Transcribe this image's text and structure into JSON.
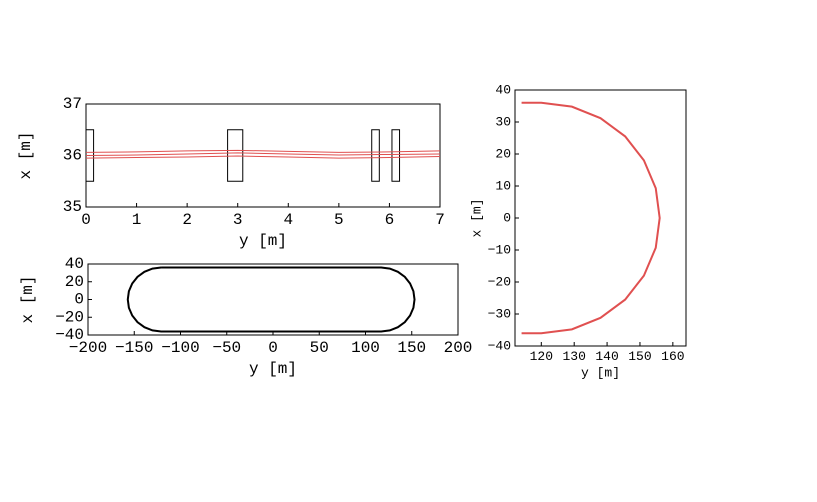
{
  "chart_data": [
    {
      "type": "line",
      "xlabel": "y [m]",
      "ylabel": "x [m]",
      "xlim": [
        0,
        7
      ],
      "ylim": [
        35,
        37
      ],
      "xticks": [
        0,
        1,
        2,
        3,
        4,
        5,
        6,
        7
      ],
      "yticks": [
        35,
        36,
        37
      ],
      "x": [
        0,
        1,
        2,
        3,
        4,
        5,
        6,
        7
      ],
      "series": [
        {
          "color": "#e05050",
          "values": [
            36.06,
            36.07,
            36.09,
            36.1,
            36.08,
            36.06,
            36.07,
            36.09
          ]
        },
        {
          "color": "#e05050",
          "values": [
            36.0,
            36.01,
            36.03,
            36.05,
            36.03,
            36.01,
            36.02,
            36.03
          ]
        },
        {
          "color": "#e05050",
          "values": [
            35.95,
            35.96,
            35.97,
            35.99,
            35.97,
            35.95,
            35.96,
            35.98
          ]
        }
      ],
      "rectangles": [
        {
          "xrange": [
            0,
            0.15
          ],
          "yrange": [
            35.5,
            36.5
          ]
        },
        {
          "xrange": [
            2.8,
            3.1
          ],
          "yrange": [
            35.5,
            36.5
          ]
        },
        {
          "xrange": [
            5.65,
            5.8
          ],
          "yrange": [
            35.5,
            36.5
          ]
        },
        {
          "xrange": [
            6.05,
            6.2
          ],
          "yrange": [
            35.5,
            36.5
          ]
        }
      ]
    },
    {
      "type": "line",
      "xlabel": "y [m]",
      "ylabel": "x [m]",
      "xlim": [
        -200,
        200
      ],
      "ylim": [
        -40,
        40
      ],
      "xticks": [
        {
          "value": -200,
          "label": "−200"
        },
        {
          "value": -150,
          "label": "−150"
        },
        {
          "value": -100,
          "label": "−100"
        },
        {
          "value": -50,
          "label": "−50"
        },
        0,
        50,
        100,
        150,
        200
      ],
      "yticks": [
        {
          "value": -40,
          "label": "−40"
        },
        {
          "value": -20,
          "label": "−20"
        },
        0,
        20,
        40
      ],
      "x": [
        -121,
        117,
        126.3,
        135,
        142.5,
        148.2,
        151.8,
        153,
        151.8,
        148.2,
        142.5,
        135,
        126.3,
        117,
        -121,
        -130.3,
        -139,
        -146.5,
        -152.2,
        -155.8,
        -157,
        -155.8,
        -152.2,
        -146.5,
        -139,
        -130.3,
        -121
      ],
      "series": [
        {
          "color": "#000000",
          "values": [
            36,
            36,
            34.8,
            31.2,
            25.5,
            18,
            9.3,
            0,
            -9.3,
            -18,
            -25.5,
            -31.2,
            -34.8,
            -36,
            -36,
            -34.8,
            -31.2,
            -25.5,
            -18,
            -9.3,
            0,
            9.3,
            18,
            25.5,
            31.2,
            34.8,
            36
          ]
        }
      ]
    },
    {
      "type": "line",
      "xlabel": "y [m]",
      "ylabel": "x [m]",
      "xlim": [
        112,
        164
      ],
      "ylim": [
        -40,
        40
      ],
      "xticks": [
        120,
        130,
        140,
        150,
        160
      ],
      "yticks": [
        {
          "value": -40,
          "label": "−40"
        },
        {
          "value": -30,
          "label": "−30"
        },
        {
          "value": -20,
          "label": "−20"
        },
        {
          "value": -10,
          "label": "−10"
        },
        0,
        10,
        20,
        30,
        40
      ],
      "x": [
        114,
        120,
        129.3,
        138,
        145.5,
        151.2,
        154.8,
        156,
        154.8,
        151.2,
        145.5,
        138,
        129.3,
        120,
        114
      ],
      "series": [
        {
          "color": "#e05050",
          "values": [
            36,
            36,
            34.8,
            31.2,
            25.5,
            18,
            9.3,
            0,
            -9.3,
            -18,
            -25.5,
            -31.2,
            -34.8,
            -36,
            -36
          ]
        }
      ]
    }
  ]
}
